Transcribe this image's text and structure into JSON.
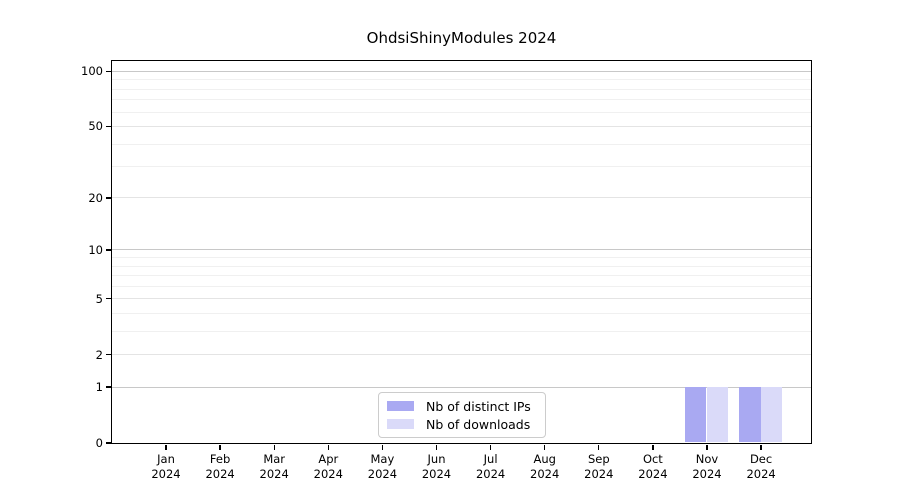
{
  "chart_data": {
    "type": "bar",
    "title": "OhdsiShinyModules 2024",
    "categories": [
      "Jan 2024",
      "Feb 2024",
      "Mar 2024",
      "Apr 2024",
      "May 2024",
      "Jun 2024",
      "Jul 2024",
      "Aug 2024",
      "Sep 2024",
      "Oct 2024",
      "Nov 2024",
      "Dec 2024"
    ],
    "series": [
      {
        "name": "Nb of distinct IPs",
        "color": "#a9a9f2",
        "values": [
          0,
          0,
          0,
          0,
          0,
          0,
          0,
          0,
          0,
          0,
          1,
          1
        ]
      },
      {
        "name": "Nb of downloads",
        "color": "#dadaf9",
        "values": [
          0,
          0,
          0,
          0,
          0,
          0,
          0,
          0,
          0,
          0,
          1,
          1
        ]
      }
    ],
    "yscale": "log1p",
    "ylim": [
      0,
      114
    ],
    "yticks": [
      0,
      1,
      2,
      5,
      10,
      20,
      50,
      100
    ],
    "y_decade_gridlines": [
      1,
      10,
      100
    ],
    "y_labeled_minor_gridlines": [
      2,
      5,
      20,
      50
    ],
    "y_minor_gridlines": [
      3,
      4,
      6,
      7,
      8,
      9,
      30,
      40,
      60,
      70,
      80,
      90
    ],
    "grid": true,
    "legend_position": "bottom-center"
  },
  "colors": {
    "bar_distinct_ips": "#a9a9f2",
    "bar_downloads": "#dadaf9",
    "grid_decade": "#c8c8c8",
    "grid_labeled": "#e4e4e4",
    "grid_minor": "#f0f0f0",
    "axis": "#000000",
    "legend_border": "#cccccc",
    "background": "#ffffff"
  }
}
